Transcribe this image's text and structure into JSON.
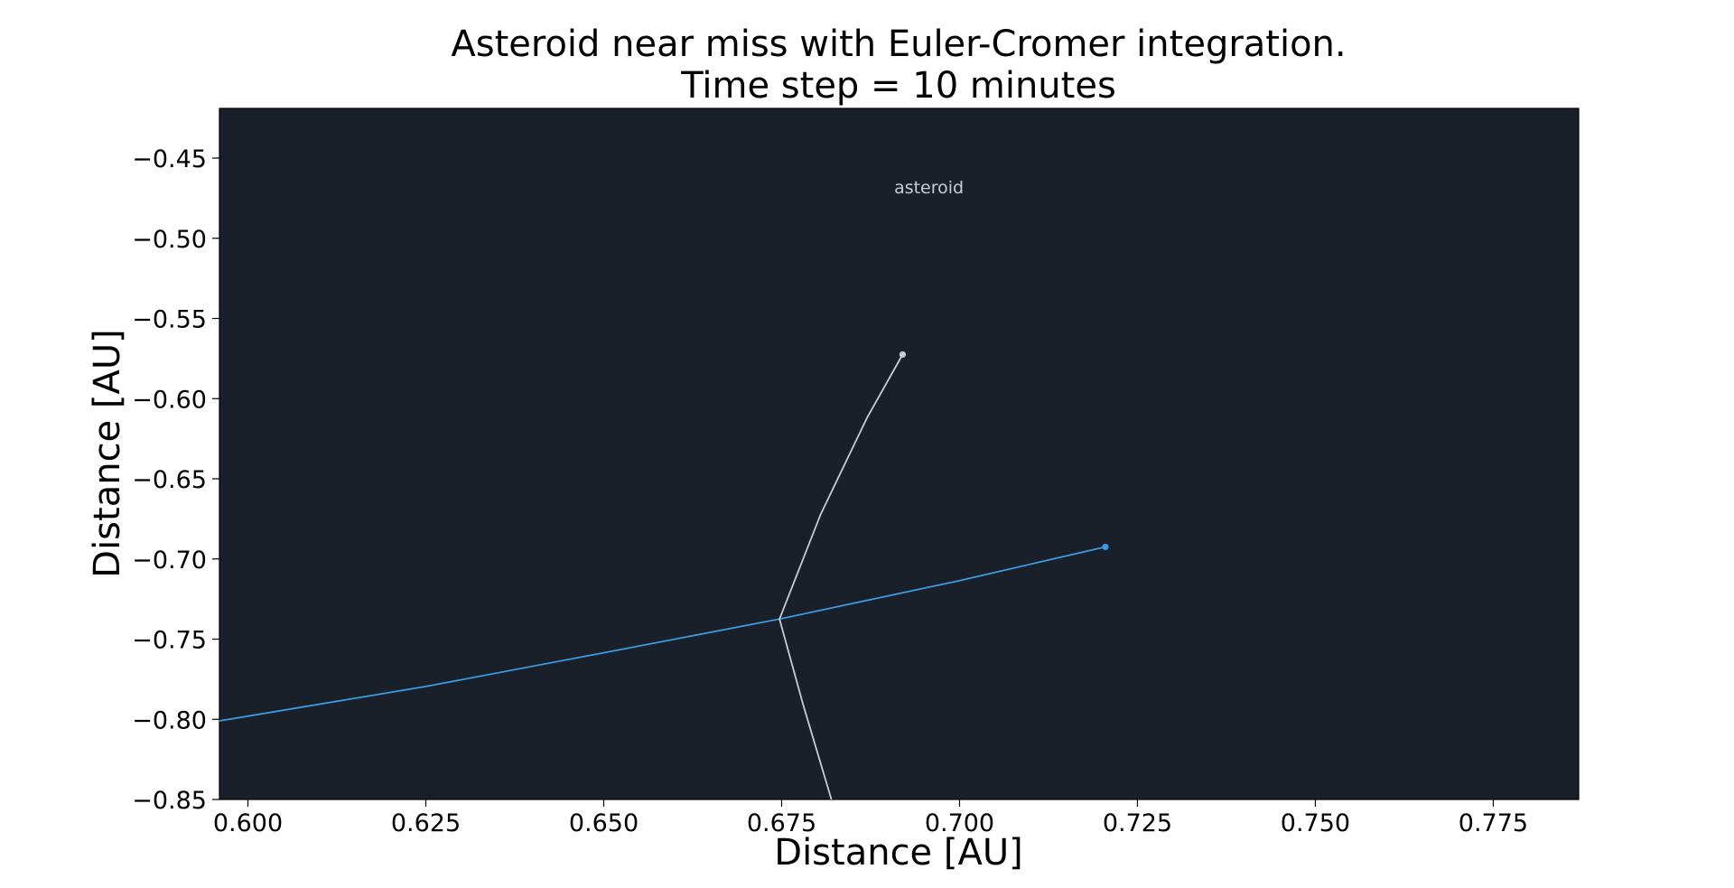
{
  "chart_data": {
    "type": "line",
    "title": "Asteroid near miss with Euler-Cromer integration.",
    "subtitle": "Time step = 10 minutes",
    "xlabel": "Distance [AU]",
    "ylabel": "Distance [AU]",
    "xlim": [
      0.596,
      0.787
    ],
    "ylim": [
      -0.85,
      -0.419
    ],
    "xticks": [
      "0.600",
      "0.625",
      "0.650",
      "0.675",
      "0.700",
      "0.725",
      "0.750",
      "0.775"
    ],
    "yticks": [
      "−0.45",
      "−0.50",
      "−0.55",
      "−0.60",
      "−0.65",
      "−0.70",
      "−0.75",
      "−0.80",
      "−0.85"
    ],
    "background": "#1a202a",
    "grid": false,
    "annotations": [
      {
        "text": "asteroid",
        "x": 0.6957,
        "y": -0.472,
        "color": "#c8ccd2"
      }
    ],
    "series": [
      {
        "color": "#3a9be0",
        "x": [
          0.596,
          0.625,
          0.65,
          0.6747,
          0.7,
          0.7205
        ],
        "y": [
          -0.801,
          -0.7795,
          -0.7585,
          -0.7375,
          -0.7135,
          -0.6925
        ],
        "end_marker": true
      },
      {
        "color": "#c8ccd2",
        "x": [
          0.682,
          0.678,
          0.6747,
          0.6805,
          0.687,
          0.692
        ],
        "y": [
          -0.85,
          -0.7905,
          -0.7375,
          -0.672,
          -0.612,
          -0.5725
        ],
        "end_marker": true
      }
    ]
  }
}
